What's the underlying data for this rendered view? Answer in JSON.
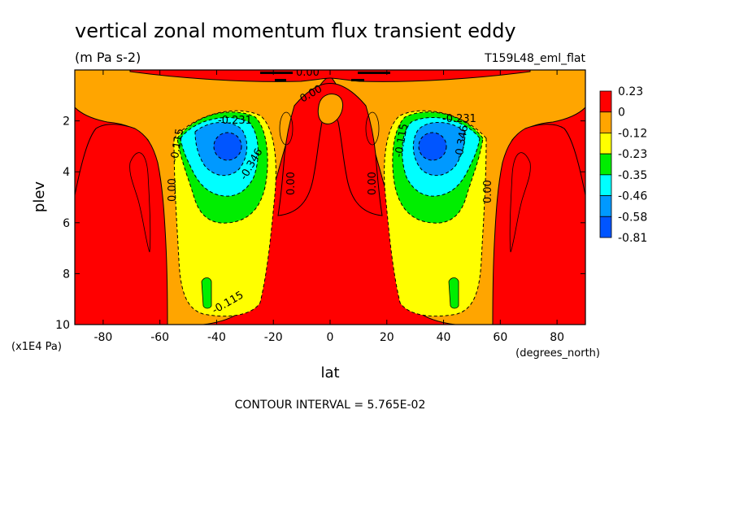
{
  "chart_data": {
    "type": "heatmap",
    "title": "vertical zonal momentum flux transient eddy",
    "units": "(m Pa s-2)",
    "run_label": "T159L48_eml_flat",
    "xlabel": "lat",
    "xunits": "(degrees_north)",
    "ylabel": "plev",
    "yunits": "(x1E4 Pa)",
    "xlim": [
      -90,
      90
    ],
    "ylim": [
      10,
      0
    ],
    "xticks": [
      -80,
      -60,
      -40,
      -20,
      0,
      20,
      40,
      60,
      80
    ],
    "yticks": [
      2,
      4,
      6,
      8,
      10
    ],
    "xtick_labels": [
      "-80",
      "-60",
      "-40",
      "-20",
      "0",
      "20",
      "40",
      "60",
      "80"
    ],
    "ytick_labels": [
      "2",
      "4",
      "6",
      "8",
      "10"
    ],
    "colorbar_labels": [
      "0.23",
      "0",
      "-0.12",
      "-0.23",
      "-0.35",
      "-0.46",
      "-0.58",
      "-0.81"
    ],
    "colors": [
      "#ff0000",
      "#ffa500",
      "#ffff00",
      "#00ee00",
      "#00ffff",
      "#0099ff",
      "#0055ff"
    ],
    "contour_labels": [
      "0.00",
      "0.00",
      "0.00",
      "0.00",
      "0.00",
      "0.00",
      "-0.231",
      "-0.346",
      "-0.115",
      "-0.115",
      "-0.231",
      "-0.346",
      "-0.115"
    ],
    "contour_interval_text": "CONTOUR INTERVAL = 5.765E-02",
    "features": {
      "min_centers": [
        {
          "lat": -36,
          "plev": 2.9
        },
        {
          "lat": 36,
          "plev": 2.9
        }
      ],
      "min_value_approx": -0.81
    }
  }
}
